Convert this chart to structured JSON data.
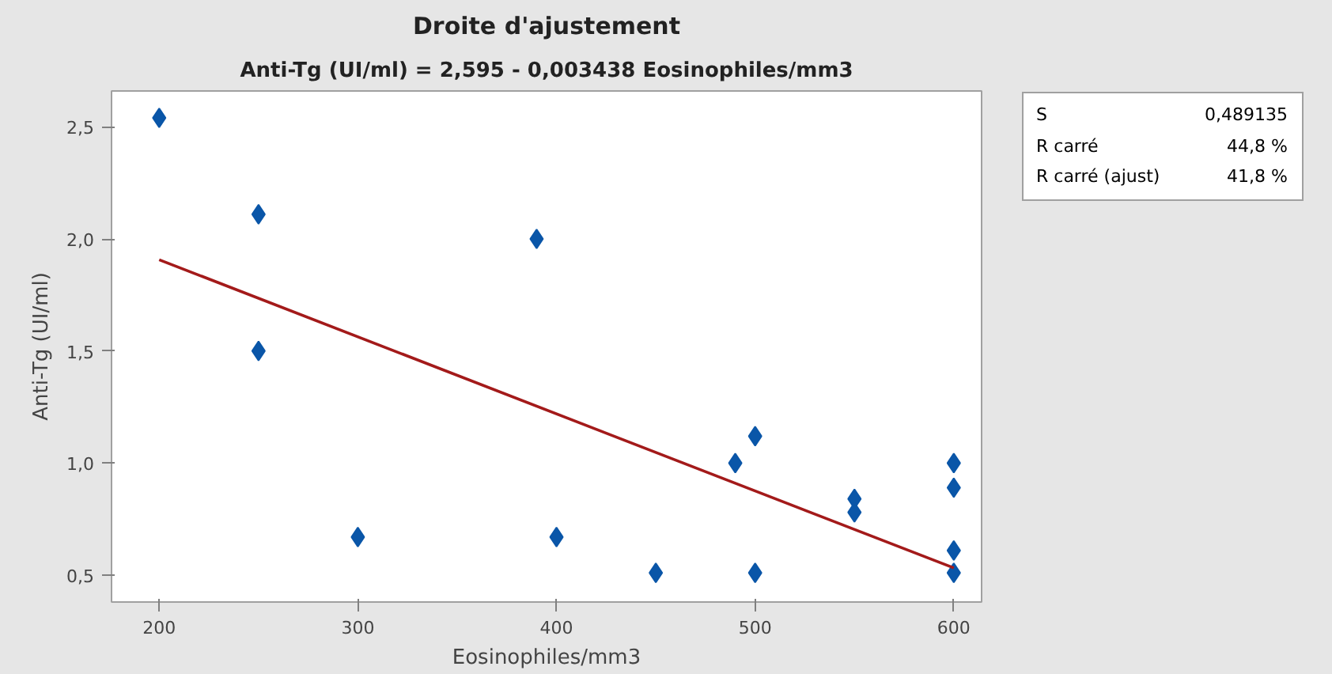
{
  "chart_data": {
    "type": "scatter",
    "title": "Droite d'ajustement",
    "subtitle": "Anti-Tg (UI/ml) = 2,595 - 0,003438 Eosinophiles/mm3",
    "xlabel": "Eosinophiles/mm3",
    "ylabel": "Anti-Tg (UI/ml)",
    "annotations": [
      "S",
      "0,489135",
      "R carré",
      "44,8 %",
      "R carré (ajust)",
      "41,8 %"
    ],
    "series": [
      {
        "color": "#0a56a8",
        "marker": "diamond",
        "x": [
          200,
          250,
          250,
          300,
          390,
          400,
          450,
          490,
          500,
          500,
          550,
          550,
          600,
          600,
          600,
          600
        ],
        "values": [
          2.54,
          2.11,
          1.5,
          0.67,
          2.0,
          0.67,
          0.51,
          1.0,
          1.12,
          0.51,
          0.84,
          0.78,
          1.0,
          0.89,
          0.61,
          0.51
        ]
      },
      {
        "type": "line",
        "color": "#a31a1a",
        "marker": "none",
        "line_style": "solid",
        "x": [
          200,
          600
        ],
        "values": [
          1.907,
          0.532
        ]
      }
    ],
    "xlim": [
      176,
      614
    ],
    "ylim": [
      0.38,
      2.66
    ],
    "xticks": [
      200,
      300,
      400,
      500,
      600
    ],
    "yticks": [
      {
        "value": 0.5,
        "label": "0,5"
      },
      {
        "value": 1.0,
        "label": "1,0"
      },
      {
        "value": 1.5,
        "label": "1,5"
      },
      {
        "value": 2.0,
        "label": "2,0"
      },
      {
        "value": 2.5,
        "label": "2,5"
      }
    ],
    "grid": false
  }
}
